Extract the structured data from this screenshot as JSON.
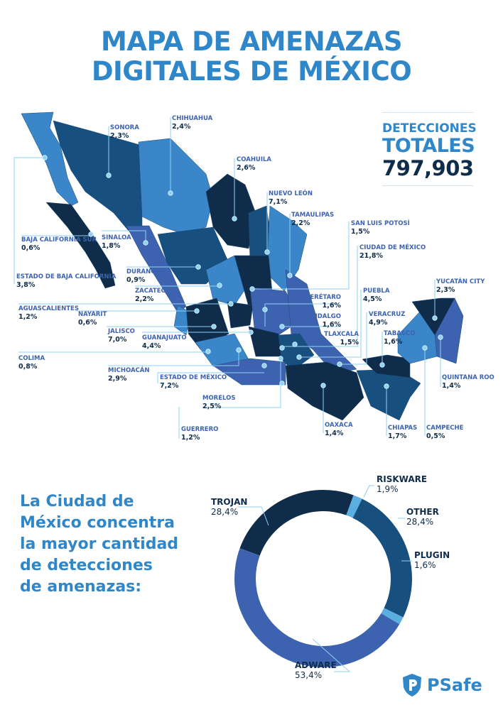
{
  "title": {
    "line1": "MAPA DE AMENAZAS",
    "line2": "DIGITALES DE MÉXICO"
  },
  "totals": {
    "line1": "DETECCIONES",
    "line2": "TOTALES",
    "value": "797,903"
  },
  "colors": {
    "accent": "#2f86c8",
    "navy": "#0f2c4a",
    "dark_blue": "#174f7e",
    "mid_blue": "#3a86c8",
    "purple_blue": "#3d63b0",
    "light_blue": "#5aaee0"
  },
  "states": [
    {
      "name": "SONORA",
      "value": "2,3%"
    },
    {
      "name": "CHIHUAHUA",
      "value": "2,4%"
    },
    {
      "name": "COAHUILA",
      "value": "2,6%"
    },
    {
      "name": "NUEVO LEÓN",
      "value": "7,1%"
    },
    {
      "name": "TAMAULIPAS",
      "value": "2,2%"
    },
    {
      "name": "SAN LUIS POTOSÍ",
      "value": "1,5%"
    },
    {
      "name": "CIUDAD DE MÉXICO",
      "value": "21,8%"
    },
    {
      "name": "BAJA CALIFORNIA SUR",
      "value": "0,6%"
    },
    {
      "name": "SINALOA",
      "value": "1,8%"
    },
    {
      "name": "ESTADO DE BAJA CALIFORNIA",
      "value": "3,8%"
    },
    {
      "name": "DURANGO",
      "value": "0,9%"
    },
    {
      "name": "ZACATECAS",
      "value": "2,2%"
    },
    {
      "name": "AGUASCALIENTES",
      "value": "1,2%"
    },
    {
      "name": "NAYARIT",
      "value": "0,6%"
    },
    {
      "name": "JALISCO",
      "value": "7,0%"
    },
    {
      "name": "GUANAJUATO",
      "value": "4,4%"
    },
    {
      "name": "COLIMA",
      "value": "0,8%"
    },
    {
      "name": "MICHOACÁN",
      "value": "2,9%"
    },
    {
      "name": "ESTADO DE MÉXICO",
      "value": "7,2%"
    },
    {
      "name": "MORELOS",
      "value": "2,5%"
    },
    {
      "name": "GUERRERO",
      "value": "1,2%"
    },
    {
      "name": "QUERÉTARO",
      "value": "1,6%"
    },
    {
      "name": "HIDALGO",
      "value": "1,6%"
    },
    {
      "name": "TLAXCALA",
      "value": "1,5%"
    },
    {
      "name": "PUEBLA",
      "value": "4,5%"
    },
    {
      "name": "VERACRUZ",
      "value": "4,9%"
    },
    {
      "name": "TABASCO",
      "value": "1,6%"
    },
    {
      "name": "YUCATÁN CITY",
      "value": "2,3%"
    },
    {
      "name": "QUINTANA ROO",
      "value": "1,4%"
    },
    {
      "name": "OAXACA",
      "value": "1,4%"
    },
    {
      "name": "CHIAPAS",
      "value": "1,7%"
    },
    {
      "name": "CAMPECHE",
      "value": "0,5%"
    }
  ],
  "conclusion": [
    "La Ciudad de",
    "México concentra",
    "la mayor cantidad",
    "de detecciones",
    "de amenazas:"
  ],
  "chart_data": {
    "type": "pie",
    "donut": true,
    "categories": [
      "TROJAN",
      "RISKWARE",
      "OTHER",
      "PLUGIN",
      "ADWARE"
    ],
    "values": [
      28.4,
      1.9,
      28.4,
      1.6,
      53.4
    ],
    "labels": [
      "28,4%",
      "1,9%",
      "28,4%",
      "1,6%",
      "53,4%"
    ],
    "colors": [
      "#0f2c4a",
      "#5aaee0",
      "#174f7e",
      "#5aaee0",
      "#3d63b0"
    ]
  },
  "logo": {
    "text": "PSafe"
  }
}
